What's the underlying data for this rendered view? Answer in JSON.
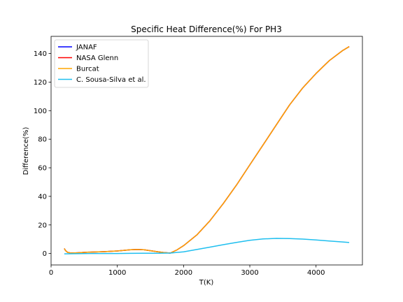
{
  "chart_data": {
    "type": "line",
    "title": "Specific Heat Difference(%) For PH3",
    "xlabel": "T(K)",
    "ylabel": "Difference(%)",
    "xlim": [
      0,
      4700
    ],
    "ylim": [
      -8,
      152
    ],
    "xticks": [
      0,
      1000,
      2000,
      3000,
      4000
    ],
    "yticks": [
      0,
      20,
      40,
      60,
      80,
      100,
      120,
      140
    ],
    "grid": false,
    "legend_position": "top-left",
    "series": [
      {
        "name": "JANAF",
        "color": "#0000ff",
        "x": [
          200,
          220,
          250,
          300,
          400,
          500,
          600,
          800,
          1000,
          1200,
          1300,
          1400,
          1500,
          1600,
          1700,
          1800,
          1900,
          2000,
          2200,
          2400,
          2600,
          2800,
          3000,
          3200,
          3400,
          3600,
          3800,
          4000,
          4200,
          4400,
          4500
        ],
        "y": [
          3.5,
          2.0,
          0.8,
          0.3,
          0.5,
          0.8,
          1.0,
          1.3,
          1.8,
          2.6,
          2.8,
          2.6,
          2.0,
          1.3,
          0.7,
          0.3,
          2.5,
          5.5,
          13.0,
          23.0,
          35.0,
          48.0,
          62.0,
          76.0,
          90.0,
          104.0,
          116.0,
          126.0,
          135.0,
          142.0,
          144.8
        ]
      },
      {
        "name": "NASA Glenn",
        "color": "#ff0000",
        "x": [
          200,
          220,
          250,
          300,
          400,
          500,
          600,
          800,
          1000,
          1200,
          1300,
          1400,
          1500,
          1600,
          1700,
          1800,
          1900,
          2000,
          2200,
          2400,
          2600,
          2800,
          3000,
          3200,
          3400,
          3600,
          3800,
          4000,
          4200,
          4400,
          4500
        ],
        "y": [
          3.5,
          2.0,
          0.8,
          0.3,
          0.5,
          0.8,
          1.0,
          1.3,
          1.8,
          2.6,
          2.8,
          2.6,
          2.0,
          1.3,
          0.7,
          0.3,
          2.5,
          5.5,
          13.0,
          23.0,
          35.0,
          48.0,
          62.0,
          76.0,
          90.0,
          104.0,
          116.0,
          126.0,
          135.0,
          142.0,
          144.8
        ]
      },
      {
        "name": "Burcat",
        "color": "#ffa500",
        "x": [
          200,
          220,
          250,
          300,
          400,
          500,
          600,
          800,
          1000,
          1200,
          1300,
          1400,
          1500,
          1600,
          1700,
          1800,
          1900,
          2000,
          2200,
          2400,
          2600,
          2800,
          3000,
          3200,
          3400,
          3600,
          3800,
          4000,
          4200,
          4400,
          4500
        ],
        "y": [
          3.5,
          2.0,
          0.8,
          0.3,
          0.5,
          0.8,
          1.0,
          1.3,
          1.8,
          2.6,
          2.8,
          2.6,
          2.0,
          1.3,
          0.7,
          0.3,
          2.5,
          5.5,
          13.0,
          23.0,
          35.0,
          48.0,
          62.0,
          76.0,
          90.0,
          104.0,
          116.0,
          126.0,
          135.0,
          142.0,
          144.8
        ]
      },
      {
        "name": "C. Sousa-Silva et al.",
        "color": "#1fbfef",
        "x": [
          200,
          400,
          600,
          800,
          1000,
          1200,
          1400,
          1600,
          1800,
          2000,
          2200,
          2400,
          2600,
          2800,
          3000,
          3200,
          3400,
          3600,
          3800,
          4000,
          4200,
          4400,
          4500
        ],
        "y": [
          -0.2,
          -0.1,
          0.0,
          0.0,
          0.0,
          0.1,
          0.2,
          0.2,
          0.3,
          1.2,
          2.8,
          4.5,
          6.2,
          7.8,
          9.2,
          10.2,
          10.6,
          10.5,
          10.1,
          9.5,
          8.8,
          8.1,
          7.7
        ]
      }
    ]
  }
}
